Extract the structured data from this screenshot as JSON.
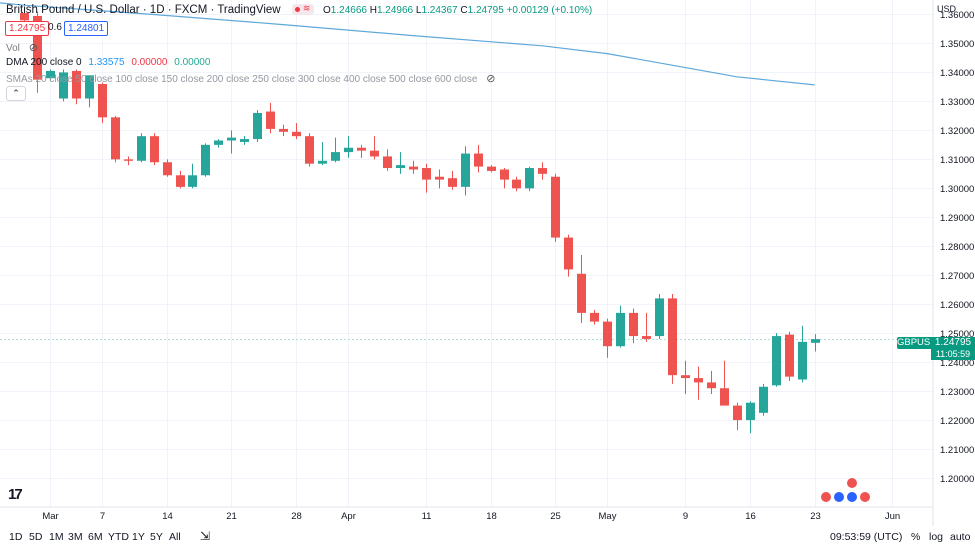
{
  "header": {
    "symbol_title": "British Pound / U.S. Dollar · 1D · FXCM · TradingView",
    "ohlc": {
      "open_label": "O",
      "open": "1.24666",
      "high_label": "H",
      "high": "1.24966",
      "low_label": "L",
      "low": "1.24367",
      "close_label": "C",
      "close": "1.24795",
      "change": "+0.00129 (+0.10%)"
    },
    "bid": "1.24795",
    "spread": "0.6",
    "ask": "1.24801",
    "vol_label": "Vol",
    "dma_label": "DMA 200 close 0",
    "dma_value": "1.33575",
    "dma_offset1": "0.00000",
    "dma_offset2": "0.00000",
    "smas_label": "SMAs 20 close 50 close 100 close 150 close 200 close 250 close 300 close 400 close 500 close 600 close",
    "collapse_icon": "chevron-up-icon"
  },
  "price_axis": {
    "currency": "USD",
    "symbol_tag": "GBPUSD",
    "last_price": "1.24795",
    "countdown": "11:05:59"
  },
  "toolbar": {
    "ranges": [
      "1D",
      "5D",
      "1M",
      "3M",
      "6M",
      "YTD",
      "1Y",
      "5Y",
      "All"
    ],
    "time": "09:53:59 (UTC)",
    "percent": "%",
    "log": "log",
    "auto": "auto"
  },
  "colors": {
    "up": "#26a69a",
    "down": "#ef5350",
    "dma": "#5fa8d9",
    "last_line": "#b2dfdb",
    "tag": "#089981"
  },
  "chart_data": {
    "type": "candlestick",
    "title": "British Pound / U.S. Dollar · 1D · FXCM",
    "y_axis": {
      "min": 1.19,
      "max": 1.365,
      "ticks": [
        1.2,
        1.21,
        1.22,
        1.23,
        1.24,
        1.25,
        1.26,
        1.27,
        1.28,
        1.29,
        1.3,
        1.31,
        1.32,
        1.33,
        1.34,
        1.35,
        1.36
      ]
    },
    "x_axis_labels": [
      {
        "label": "21",
        "index": -3
      },
      {
        "label": "Mar",
        "index": 2
      },
      {
        "label": "7",
        "index": 6
      },
      {
        "label": "14",
        "index": 11
      },
      {
        "label": "21",
        "index": 16
      },
      {
        "label": "28",
        "index": 21
      },
      {
        "label": "Apr",
        "index": 25
      },
      {
        "label": "11",
        "index": 31
      },
      {
        "label": "18",
        "index": 36
      },
      {
        "label": "25",
        "index": 41
      },
      {
        "label": "May",
        "index": 45
      },
      {
        "label": "9",
        "index": 51
      },
      {
        "label": "16",
        "index": 56
      },
      {
        "label": "23",
        "index": 61
      },
      {
        "label": "Jun",
        "index": 67
      }
    ],
    "candles": [
      {
        "o": 1.3605,
        "h": 1.3615,
        "l": 1.3555,
        "c": 1.358
      },
      {
        "o": 1.3595,
        "h": 1.361,
        "l": 1.333,
        "c": 1.3375
      },
      {
        "o": 1.338,
        "h": 1.341,
        "l": 1.337,
        "c": 1.3405
      },
      {
        "o": 1.331,
        "h": 1.341,
        "l": 1.33,
        "c": 1.34
      },
      {
        "o": 1.3405,
        "h": 1.341,
        "l": 1.329,
        "c": 1.331
      },
      {
        "o": 1.331,
        "h": 1.339,
        "l": 1.328,
        "c": 1.339
      },
      {
        "o": 1.336,
        "h": 1.3365,
        "l": 1.3225,
        "c": 1.3245
      },
      {
        "o": 1.3245,
        "h": 1.325,
        "l": 1.309,
        "c": 1.31
      },
      {
        "o": 1.31,
        "h": 1.311,
        "l": 1.308,
        "c": 1.3095
      },
      {
        "o": 1.3095,
        "h": 1.319,
        "l": 1.309,
        "c": 1.318
      },
      {
        "o": 1.318,
        "h": 1.319,
        "l": 1.308,
        "c": 1.309
      },
      {
        "o": 1.309,
        "h": 1.31,
        "l": 1.304,
        "c": 1.3045
      },
      {
        "o": 1.3045,
        "h": 1.306,
        "l": 1.3,
        "c": 1.3005
      },
      {
        "o": 1.3005,
        "h": 1.3085,
        "l": 1.3,
        "c": 1.3045
      },
      {
        "o": 1.3045,
        "h": 1.3155,
        "l": 1.304,
        "c": 1.315
      },
      {
        "o": 1.315,
        "h": 1.317,
        "l": 1.314,
        "c": 1.3165
      },
      {
        "o": 1.3165,
        "h": 1.32,
        "l": 1.312,
        "c": 1.3175
      },
      {
        "o": 1.316,
        "h": 1.318,
        "l": 1.315,
        "c": 1.317
      },
      {
        "o": 1.317,
        "h": 1.327,
        "l": 1.316,
        "c": 1.326
      },
      {
        "o": 1.3265,
        "h": 1.3295,
        "l": 1.319,
        "c": 1.3205
      },
      {
        "o": 1.3205,
        "h": 1.322,
        "l": 1.318,
        "c": 1.3195
      },
      {
        "o": 1.3195,
        "h": 1.3225,
        "l": 1.317,
        "c": 1.318
      },
      {
        "o": 1.318,
        "h": 1.319,
        "l": 1.3075,
        "c": 1.3085
      },
      {
        "o": 1.3085,
        "h": 1.316,
        "l": 1.308,
        "c": 1.3095
      },
      {
        "o": 1.3095,
        "h": 1.3175,
        "l": 1.309,
        "c": 1.3125
      },
      {
        "o": 1.3125,
        "h": 1.318,
        "l": 1.3105,
        "c": 1.314
      },
      {
        "o": 1.314,
        "h": 1.315,
        "l": 1.3105,
        "c": 1.313
      },
      {
        "o": 1.313,
        "h": 1.318,
        "l": 1.31,
        "c": 1.311
      },
      {
        "o": 1.311,
        "h": 1.3135,
        "l": 1.306,
        "c": 1.307
      },
      {
        "o": 1.307,
        "h": 1.3125,
        "l": 1.305,
        "c": 1.308
      },
      {
        "o": 1.3075,
        "h": 1.3095,
        "l": 1.305,
        "c": 1.3065
      },
      {
        "o": 1.307,
        "h": 1.3085,
        "l": 1.2985,
        "c": 1.303
      },
      {
        "o": 1.304,
        "h": 1.3065,
        "l": 1.3,
        "c": 1.303
      },
      {
        "o": 1.3035,
        "h": 1.306,
        "l": 1.2995,
        "c": 1.3005
      },
      {
        "o": 1.3005,
        "h": 1.3145,
        "l": 1.2975,
        "c": 1.312
      },
      {
        "o": 1.312,
        "h": 1.315,
        "l": 1.3055,
        "c": 1.3075
      },
      {
        "o": 1.3075,
        "h": 1.308,
        "l": 1.3055,
        "c": 1.306
      },
      {
        "o": 1.3065,
        "h": 1.307,
        "l": 1.3,
        "c": 1.303
      },
      {
        "o": 1.303,
        "h": 1.304,
        "l": 1.299,
        "c": 1.3
      },
      {
        "o": 1.3,
        "h": 1.3075,
        "l": 1.299,
        "c": 1.307
      },
      {
        "o": 1.307,
        "h": 1.309,
        "l": 1.303,
        "c": 1.305
      },
      {
        "o": 1.304,
        "h": 1.305,
        "l": 1.2815,
        "c": 1.283
      },
      {
        "o": 1.283,
        "h": 1.284,
        "l": 1.2695,
        "c": 1.272
      },
      {
        "o": 1.2705,
        "h": 1.277,
        "l": 1.2535,
        "c": 1.257
      },
      {
        "o": 1.257,
        "h": 1.258,
        "l": 1.253,
        "c": 1.254
      },
      {
        "o": 1.254,
        "h": 1.255,
        "l": 1.2415,
        "c": 1.2455
      },
      {
        "o": 1.2455,
        "h": 1.2595,
        "l": 1.245,
        "c": 1.257
      },
      {
        "o": 1.257,
        "h": 1.2585,
        "l": 1.2465,
        "c": 1.249
      },
      {
        "o": 1.249,
        "h": 1.257,
        "l": 1.247,
        "c": 1.248
      },
      {
        "o": 1.249,
        "h": 1.2635,
        "l": 1.248,
        "c": 1.262
      },
      {
        "o": 1.262,
        "h": 1.2635,
        "l": 1.2325,
        "c": 1.2355
      },
      {
        "o": 1.2355,
        "h": 1.2405,
        "l": 1.229,
        "c": 1.2345
      },
      {
        "o": 1.2345,
        "h": 1.2385,
        "l": 1.227,
        "c": 1.233
      },
      {
        "o": 1.233,
        "h": 1.237,
        "l": 1.229,
        "c": 1.231
      },
      {
        "o": 1.231,
        "h": 1.2405,
        "l": 1.225,
        "c": 1.225
      },
      {
        "o": 1.225,
        "h": 1.226,
        "l": 1.2165,
        "c": 1.22
      },
      {
        "o": 1.22,
        "h": 1.2265,
        "l": 1.2155,
        "c": 1.226
      },
      {
        "o": 1.2225,
        "h": 1.2325,
        "l": 1.2215,
        "c": 1.2315
      },
      {
        "o": 1.232,
        "h": 1.25,
        "l": 1.2315,
        "c": 1.249
      },
      {
        "o": 1.2495,
        "h": 1.2505,
        "l": 1.2335,
        "c": 1.235
      },
      {
        "o": 1.234,
        "h": 1.2525,
        "l": 1.233,
        "c": 1.247
      },
      {
        "o": 1.24666,
        "h": 1.24966,
        "l": 1.24367,
        "c": 1.24795
      }
    ],
    "dma200": [
      {
        "i": -3,
        "v": 1.3645
      },
      {
        "i": 0,
        "v": 1.3632
      },
      {
        "i": 10,
        "v": 1.36
      },
      {
        "i": 20,
        "v": 1.3565
      },
      {
        "i": 30,
        "v": 1.3527
      },
      {
        "i": 40,
        "v": 1.3492
      },
      {
        "i": 45,
        "v": 1.3465
      },
      {
        "i": 50,
        "v": 1.3425
      },
      {
        "i": 55,
        "v": 1.3385
      },
      {
        "i": 61,
        "v": 1.3357
      }
    ],
    "last_price": 1.24795
  }
}
